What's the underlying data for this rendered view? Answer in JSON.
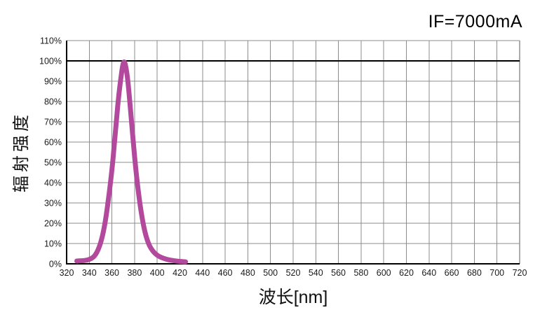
{
  "chart_data": {
    "type": "line",
    "title": "",
    "annotation": "IF=7000mA",
    "xlabel": "波长[nm]",
    "ylabel": "辐射强度",
    "xlim": [
      320,
      720
    ],
    "ylim": [
      0,
      110
    ],
    "x_ticks": [
      320,
      340,
      360,
      380,
      400,
      420,
      440,
      460,
      480,
      500,
      520,
      540,
      560,
      580,
      600,
      620,
      640,
      660,
      680,
      700,
      720
    ],
    "y_ticks": [
      0,
      10,
      20,
      30,
      40,
      50,
      60,
      70,
      80,
      90,
      100,
      110
    ],
    "y_tick_suffix": "%",
    "grid": true,
    "legend": "none",
    "reference_line_y": 100,
    "peak_wavelength_nm": 371,
    "colors": {
      "curve": "#b2499c",
      "grid": "#8c8c8c",
      "axis": "#000000",
      "border_right": "#5a5a5a",
      "text": "#1a1a1a"
    },
    "series": [
      {
        "points": [
          [
            329,
            1.4
          ],
          [
            334,
            1.5
          ],
          [
            338,
            1.8
          ],
          [
            342,
            2.6
          ],
          [
            345,
            4.0
          ],
          [
            348,
            7.0
          ],
          [
            351,
            12.0
          ],
          [
            354,
            20.0
          ],
          [
            357,
            32.0
          ],
          [
            360,
            46.0
          ],
          [
            362,
            58.0
          ],
          [
            364,
            71.0
          ],
          [
            366,
            83.0
          ],
          [
            368,
            92.0
          ],
          [
            369.5,
            98.0
          ],
          [
            370.8,
            100.0
          ],
          [
            372,
            98.0
          ],
          [
            373.5,
            93.0
          ],
          [
            375,
            85.0
          ],
          [
            377,
            72.0
          ],
          [
            379,
            59.0
          ],
          [
            381,
            47.0
          ],
          [
            383,
            37.0
          ],
          [
            385,
            28.5
          ],
          [
            387,
            21.5
          ],
          [
            389,
            16.0
          ],
          [
            391,
            12.0
          ],
          [
            393,
            9.0
          ],
          [
            396,
            6.3
          ],
          [
            399,
            4.6
          ],
          [
            402,
            3.5
          ],
          [
            406,
            2.6
          ],
          [
            410,
            2.0
          ],
          [
            414,
            1.6
          ],
          [
            418,
            1.3
          ],
          [
            422,
            1.1
          ],
          [
            425,
            1.0
          ]
        ]
      }
    ]
  }
}
